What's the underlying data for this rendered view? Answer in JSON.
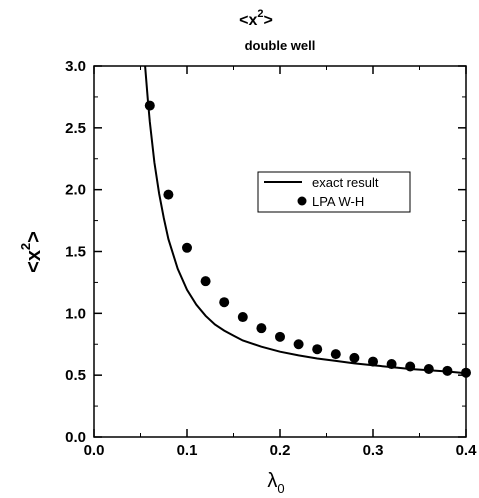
{
  "chart_data": {
    "type": "scatter",
    "title": "<x",
    "title_sup": "2",
    "title_suffix": ">",
    "subtitle": "double well",
    "xlabel_main": "λ",
    "xlabel_sub": "0",
    "ylabel": "<x",
    "ylabel_sup": "2",
    "ylabel_suffix": ">",
    "xlim": [
      0.0,
      0.4
    ],
    "ylim": [
      0.0,
      3.0
    ],
    "x_ticks": [
      "0.0",
      "0.1",
      "0.2",
      "0.3",
      "0.4"
    ],
    "y_ticks": [
      "0.0",
      "0.5",
      "1.0",
      "1.5",
      "2.0",
      "2.5",
      "3.0"
    ],
    "grid": false,
    "legend_position": "center-right",
    "series": [
      {
        "name": "exact result",
        "kind": "line",
        "color": "#000000",
        "x": [
          0.055,
          0.058,
          0.06,
          0.065,
          0.07,
          0.075,
          0.08,
          0.09,
          0.1,
          0.11,
          0.12,
          0.13,
          0.14,
          0.15,
          0.16,
          0.18,
          0.2,
          0.22,
          0.24,
          0.26,
          0.28,
          0.3,
          0.32,
          0.34,
          0.36,
          0.38,
          0.4
        ],
        "y": [
          3.0,
          2.72,
          2.55,
          2.22,
          1.97,
          1.77,
          1.6,
          1.36,
          1.19,
          1.07,
          0.98,
          0.91,
          0.86,
          0.82,
          0.78,
          0.73,
          0.69,
          0.66,
          0.635,
          0.615,
          0.595,
          0.58,
          0.565,
          0.55,
          0.54,
          0.53,
          0.515
        ]
      },
      {
        "name": "LPA W-H",
        "kind": "scatter",
        "color": "#000000",
        "x": [
          0.06,
          0.08,
          0.1,
          0.12,
          0.14,
          0.16,
          0.18,
          0.2,
          0.22,
          0.24,
          0.26,
          0.28,
          0.3,
          0.32,
          0.34,
          0.36,
          0.38,
          0.4
        ],
        "y": [
          2.68,
          1.96,
          1.53,
          1.26,
          1.09,
          0.97,
          0.88,
          0.81,
          0.75,
          0.71,
          0.67,
          0.64,
          0.61,
          0.59,
          0.57,
          0.55,
          0.535,
          0.52
        ]
      }
    ]
  }
}
